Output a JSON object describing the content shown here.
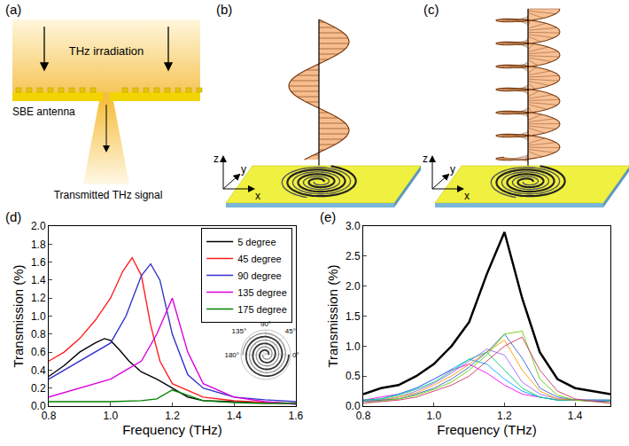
{
  "panels": {
    "a": {
      "label": "(a)",
      "irradiation": "THz irradiation",
      "antenna": "SBE antenna",
      "signal": "Transmitted THz signal"
    },
    "b": {
      "label": "(b)",
      "axes": {
        "x": "x",
        "y": "y",
        "z": "z"
      }
    },
    "c": {
      "label": "(c)",
      "axes": {
        "x": "x",
        "y": "y",
        "z": "z"
      }
    }
  },
  "chart_data": [
    {
      "type": "line",
      "panel": "(d)",
      "x_label": "Frequency (THz)",
      "y_label": "Transmission (%)",
      "xlim": [
        0.8,
        1.6
      ],
      "xticks": [
        0.8,
        {
          "value": 1,
          "label": "1.0"
        },
        1.2,
        1.4,
        1.6
      ],
      "ylim": [
        0,
        2
      ],
      "yticks": [
        {
          "value": 0,
          "label": "0.0"
        },
        0.2,
        0.4,
        0.6,
        0.8,
        {
          "value": 1,
          "label": "1.0"
        },
        1.2,
        1.4,
        1.6,
        1.8,
        {
          "value": 2,
          "label": "2.0"
        }
      ],
      "grid": false,
      "legend": "upper right",
      "annotations": [
        "90°",
        "135°",
        "45°",
        "180°",
        "0°"
      ],
      "series": [
        {
          "name": "5 degree",
          "color": "#000000",
          "x": [
            0.8,
            0.85,
            0.9,
            0.95,
            0.98,
            1.0,
            1.03,
            1.06,
            1.1,
            1.15,
            1.2,
            1.25,
            1.3,
            1.4,
            1.5,
            1.6
          ],
          "values": [
            0.33,
            0.45,
            0.6,
            0.7,
            0.75,
            0.73,
            0.62,
            0.5,
            0.38,
            0.3,
            0.2,
            0.1,
            0.06,
            0.05,
            0.04,
            0.03
          ]
        },
        {
          "name": "45 degree",
          "color": "#ff2020",
          "x": [
            0.8,
            0.85,
            0.9,
            0.95,
            1.0,
            1.04,
            1.07,
            1.1,
            1.13,
            1.16,
            1.2,
            1.3,
            1.4,
            1.5,
            1.6
          ],
          "values": [
            0.5,
            0.6,
            0.75,
            0.95,
            1.2,
            1.5,
            1.65,
            1.45,
            0.9,
            0.5,
            0.25,
            0.1,
            0.06,
            0.04,
            0.03
          ]
        },
        {
          "name": "90 degree",
          "color": "#3333cc",
          "x": [
            0.8,
            0.85,
            0.9,
            0.95,
            1.0,
            1.05,
            1.1,
            1.13,
            1.16,
            1.2,
            1.25,
            1.3,
            1.4,
            1.5,
            1.6
          ],
          "values": [
            0.3,
            0.4,
            0.5,
            0.6,
            0.7,
            1.0,
            1.45,
            1.58,
            1.4,
            0.8,
            0.35,
            0.2,
            0.1,
            0.07,
            0.05
          ]
        },
        {
          "name": "135 degree",
          "color": "#dd00dd",
          "x": [
            0.8,
            0.9,
            1.0,
            1.05,
            1.1,
            1.15,
            1.2,
            1.25,
            1.3,
            1.4,
            1.5,
            1.6
          ],
          "values": [
            0.1,
            0.2,
            0.3,
            0.4,
            0.5,
            0.8,
            1.2,
            0.6,
            0.25,
            0.1,
            0.05,
            0.02
          ]
        },
        {
          "name": "175 degree",
          "color": "#008000",
          "x": [
            0.8,
            0.9,
            1.0,
            1.1,
            1.15,
            1.2,
            1.25,
            1.3,
            1.4,
            1.5,
            1.6
          ],
          "values": [
            0.05,
            0.05,
            0.05,
            0.06,
            0.08,
            0.18,
            0.12,
            0.06,
            0.04,
            0.03,
            0.03
          ]
        }
      ]
    },
    {
      "type": "line",
      "panel": "(e)",
      "x_label": "Frequency (THz)",
      "y_label": "Transmission (%)",
      "xlim": [
        0.8,
        1.5
      ],
      "xticks": [
        0.8,
        {
          "value": 1,
          "label": "1.0"
        },
        1.2,
        1.4
      ],
      "ylim": [
        0,
        3
      ],
      "yticks": [
        {
          "value": 0,
          "label": "0.0"
        },
        0.5,
        {
          "value": 1,
          "label": "1.0"
        },
        1.5,
        {
          "value": 2,
          "label": "2.0"
        },
        2.5,
        {
          "value": 3,
          "label": "3.0"
        }
      ],
      "grid": false,
      "x": [
        0.8,
        0.85,
        0.9,
        0.95,
        1.0,
        1.05,
        1.1,
        1.15,
        1.2,
        1.25,
        1.3,
        1.35,
        1.4,
        1.45,
        1.5
      ],
      "series": [
        {
          "color": "#ff00ff",
          "values": [
            0.1,
            0.15,
            0.2,
            0.3,
            0.45,
            0.6,
            0.7,
            0.55,
            0.35,
            0.2,
            0.15,
            0.1,
            0.1,
            0.1,
            0.1
          ]
        },
        {
          "color": "#00aaff",
          "values": [
            0.1,
            0.12,
            0.2,
            0.3,
            0.45,
            0.62,
            0.78,
            0.7,
            0.45,
            0.25,
            0.15,
            0.1,
            0.1,
            0.1,
            0.1
          ]
        },
        {
          "color": "#00cc66",
          "values": [
            0.1,
            0.12,
            0.18,
            0.28,
            0.4,
            0.58,
            0.78,
            0.9,
            0.6,
            0.3,
            0.15,
            0.1,
            0.1,
            0.1,
            0.1
          ]
        },
        {
          "color": "#9966ff",
          "values": [
            0.08,
            0.1,
            0.15,
            0.25,
            0.38,
            0.55,
            0.75,
            0.95,
            0.85,
            0.4,
            0.2,
            0.12,
            0.1,
            0.1,
            0.08
          ]
        },
        {
          "color": "#ff9900",
          "values": [
            0.08,
            0.1,
            0.15,
            0.22,
            0.35,
            0.5,
            0.7,
            0.9,
            1.1,
            0.6,
            0.25,
            0.12,
            0.1,
            0.08,
            0.08
          ]
        },
        {
          "color": "#3366cc",
          "values": [
            0.08,
            0.1,
            0.12,
            0.2,
            0.3,
            0.45,
            0.65,
            0.9,
            1.2,
            0.8,
            0.3,
            0.15,
            0.1,
            0.08,
            0.08
          ]
        },
        {
          "color": "#66cc00",
          "values": [
            0.05,
            0.08,
            0.12,
            0.18,
            0.28,
            0.4,
            0.6,
            0.85,
            1.2,
            1.25,
            0.45,
            0.18,
            0.1,
            0.08,
            0.05
          ]
        },
        {
          "color": "#cc3366",
          "values": [
            0.05,
            0.08,
            0.1,
            0.15,
            0.25,
            0.35,
            0.5,
            0.75,
            1.0,
            1.15,
            0.6,
            0.25,
            0.12,
            0.08,
            0.05
          ]
        },
        {
          "color": "#000000",
          "line_style": "bold",
          "values": [
            0.2,
            0.3,
            0.35,
            0.5,
            0.7,
            1.0,
            1.4,
            2.2,
            2.9,
            1.8,
            0.9,
            0.45,
            0.3,
            0.25,
            0.2
          ]
        }
      ]
    }
  ]
}
